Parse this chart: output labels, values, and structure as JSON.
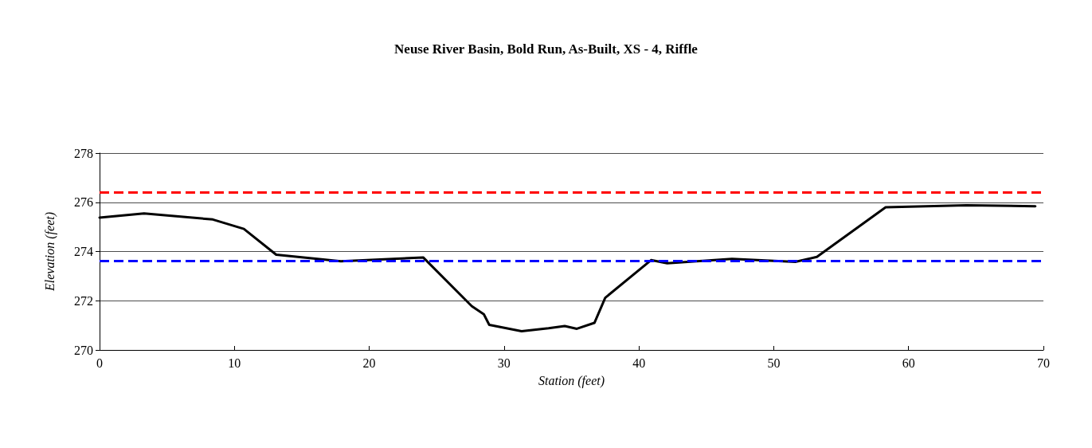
{
  "chart_data": {
    "type": "line",
    "title": "Neuse River Basin, Bold Run, As-Built, XS - 4, Riffle",
    "xlabel": "Station (feet)",
    "ylabel": "Elevation (feet)",
    "x": [
      0,
      3.3,
      8.4,
      10.7,
      13.1,
      17.9,
      24,
      27.6,
      28.5,
      28.9,
      31.3,
      33.3,
      34.5,
      35.4,
      36.7,
      37.5,
      40.9,
      42.1,
      46.9,
      51.6,
      53.2,
      58.3,
      64.3,
      69.4
    ],
    "series": [
      {
        "color": "#000000",
        "values": [
          275.38,
          275.55,
          275.3,
          274.92,
          273.87,
          273.6,
          273.76,
          271.78,
          271.45,
          271.02,
          270.76,
          270.88,
          270.97,
          270.86,
          271.1,
          272.12,
          273.65,
          273.52,
          273.7,
          273.58,
          273.78,
          275.8,
          275.88,
          275.84
        ]
      }
    ],
    "xlim": [
      0,
      70
    ],
    "xticks": [
      0,
      10,
      20,
      30,
      40,
      50,
      60,
      70
    ],
    "ylim": [
      270,
      278
    ],
    "yticks": [
      270,
      272,
      274,
      276,
      278
    ],
    "grid": "y",
    "marker": "none",
    "line_style": "solid",
    "ref_lines": [
      {
        "axis": "y",
        "value": 276.42,
        "color": "#ff0000",
        "line_style": "dashed"
      },
      {
        "axis": "y",
        "value": 273.62,
        "color": "#0000ff",
        "line_style": "dashed"
      }
    ]
  }
}
